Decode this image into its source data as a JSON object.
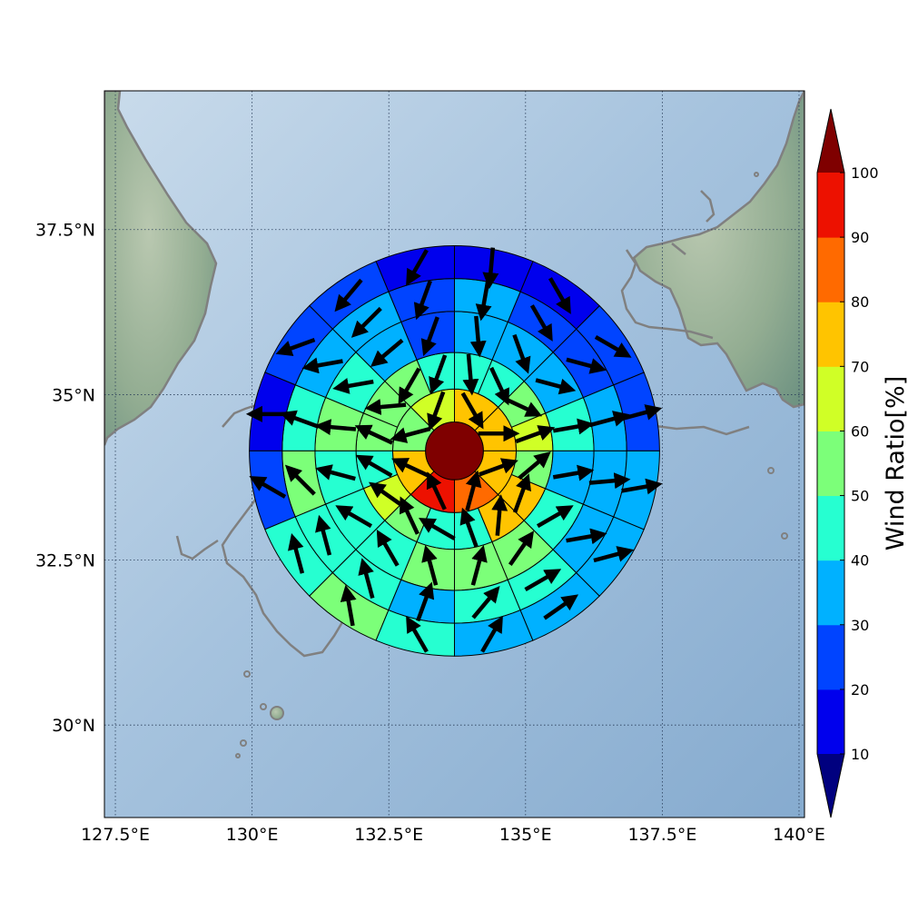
{
  "map": {
    "lon_range": [
      127.3,
      140.1
    ],
    "lat_range": [
      28.6,
      39.6
    ],
    "x_ticks": [
      {
        "value": 127.5,
        "label": "127.5°E"
      },
      {
        "value": 130.0,
        "label": "130°E"
      },
      {
        "value": 132.5,
        "label": "132.5°E"
      },
      {
        "value": 135.0,
        "label": "135°E"
      },
      {
        "value": 137.5,
        "label": "137.5°E"
      },
      {
        "value": 140.0,
        "label": "140°E"
      }
    ],
    "y_ticks": [
      {
        "value": 30.0,
        "label": "30°N"
      },
      {
        "value": 32.5,
        "label": "32.5°N"
      },
      {
        "value": 35.0,
        "label": "35°N"
      },
      {
        "value": 37.5,
        "label": "37.5°N"
      }
    ],
    "colors": {
      "sea": "#9dbdd9",
      "land": "#8fae96",
      "coastline": "#808080",
      "grid": "#2a3e5a"
    }
  },
  "colorbar": {
    "label": "Wind Ratio[%]",
    "ticks": [
      "10",
      "20",
      "30",
      "40",
      "50",
      "60",
      "70",
      "80",
      "90",
      "100"
    ],
    "under_color": "#00007f",
    "over_color": "#7f0000",
    "band_colors": [
      "#0000ed",
      "#0044ff",
      "#00b1ff",
      "#26ffd1",
      "#7cff79",
      "#d0ff26",
      "#ffc400",
      "#ff6a00",
      "#ed1100"
    ]
  },
  "wind_rings": {
    "center": [
      133.7,
      34.15
    ],
    "ring_radii": [
      0.53,
      1.13,
      1.8,
      2.55,
      3.15,
      3.75
    ],
    "sectors_per_ring": [
      1,
      8,
      16,
      16,
      16,
      16
    ],
    "cells": [
      [
        {
          "ratio": 100,
          "dir": 0
        }
      ],
      [
        {
          "ratio": 75,
          "dir": 90
        },
        {
          "ratio": 75,
          "dir": 150
        },
        {
          "ratio": 65,
          "dir": 200
        },
        {
          "ratio": 55,
          "dir": 255
        },
        {
          "ratio": 75,
          "dir": 295
        },
        {
          "ratio": 95,
          "dir": 335
        },
        {
          "ratio": 85,
          "dir": 15
        },
        {
          "ratio": 75,
          "dir": 70
        }
      ],
      [
        {
          "ratio": 65,
          "dir": 70
        },
        {
          "ratio": 55,
          "dir": 115
        },
        {
          "ratio": 45,
          "dir": 155
        },
        {
          "ratio": 45,
          "dir": 175
        },
        {
          "ratio": 45,
          "dir": 200
        },
        {
          "ratio": 55,
          "dir": 210
        },
        {
          "ratio": 55,
          "dir": 265
        },
        {
          "ratio": 55,
          "dir": 295
        },
        {
          "ratio": 45,
          "dir": 300
        },
        {
          "ratio": 65,
          "dir": 305
        },
        {
          "ratio": 55,
          "dir": 335
        },
        {
          "ratio": 45,
          "dir": 300
        },
        {
          "ratio": 45,
          "dir": 340
        },
        {
          "ratio": 75,
          "dir": 5
        },
        {
          "ratio": 75,
          "dir": 20
        },
        {
          "ratio": 55,
          "dir": 50
        }
      ],
      [
        {
          "ratio": 45,
          "dir": 80
        },
        {
          "ratio": 35,
          "dir": 105
        },
        {
          "ratio": 35,
          "dir": 160
        },
        {
          "ratio": 35,
          "dir": 175
        },
        {
          "ratio": 25,
          "dir": 200
        },
        {
          "ratio": 35,
          "dir": 230
        },
        {
          "ratio": 45,
          "dir": 260
        },
        {
          "ratio": 55,
          "dir": 275
        },
        {
          "ratio": 45,
          "dir": 285
        },
        {
          "ratio": 45,
          "dir": 300
        },
        {
          "ratio": 45,
          "dir": 330
        },
        {
          "ratio": 55,
          "dir": 345
        },
        {
          "ratio": 55,
          "dir": 15
        },
        {
          "ratio": 55,
          "dir": 35
        },
        {
          "ratio": 45,
          "dir": 60
        },
        {
          "ratio": 35,
          "dir": 80
        }
      ],
      [
        {
          "ratio": 35,
          "dir": 75
        },
        {
          "ratio": 25,
          "dir": 105
        },
        {
          "ratio": 25,
          "dir": 150
        },
        {
          "ratio": 35,
          "dir": 190
        },
        {
          "ratio": 25,
          "dir": 200
        },
        {
          "ratio": 35,
          "dir": 225
        },
        {
          "ratio": 35,
          "dir": 260
        },
        {
          "ratio": 45,
          "dir": 290
        },
        {
          "ratio": 55,
          "dir": 315
        },
        {
          "ratio": 45,
          "dir": 345
        },
        {
          "ratio": 45,
          "dir": 345
        },
        {
          "ratio": 35,
          "dir": 20
        },
        {
          "ratio": 45,
          "dir": 40
        },
        {
          "ratio": 45,
          "dir": 60
        },
        {
          "ratio": 35,
          "dir": 80
        },
        {
          "ratio": 35,
          "dir": 85
        }
      ],
      [
        {
          "ratio": 25,
          "dir": 75
        },
        {
          "ratio": 25,
          "dir": 120
        },
        {
          "ratio": 15,
          "dir": 150
        },
        {
          "ratio": 15,
          "dir": 185
        },
        {
          "ratio": 15,
          "dir": 210
        },
        {
          "ratio": 25,
          "dir": 220
        },
        {
          "ratio": 25,
          "dir": 250
        },
        {
          "ratio": 15,
          "dir": 270
        },
        {
          "ratio": 25,
          "dir": 300
        },
        {
          "ratio": 45,
          "dir": 345
        },
        {
          "ratio": 55,
          "dir": 350
        },
        {
          "ratio": 45,
          "dir": 330
        },
        {
          "ratio": 35,
          "dir": 30
        },
        {
          "ratio": 35,
          "dir": 55
        },
        {
          "ratio": 35,
          "dir": 75
        },
        {
          "ratio": 35,
          "dir": 80
        }
      ]
    ]
  }
}
